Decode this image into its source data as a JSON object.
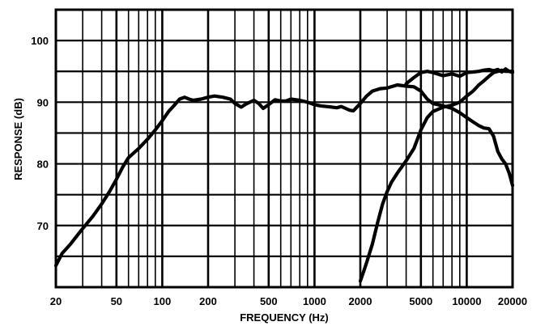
{
  "chart_data": {
    "type": "line",
    "xlabel": "FREQUENCY (Hz)",
    "ylabel": "RESPONSE (dB)",
    "x_scale": "log",
    "xlim": [
      20,
      20000
    ],
    "ylim": [
      60,
      105
    ],
    "x_ticks": [
      {
        "value": 20,
        "label": "20"
      },
      {
        "value": 50,
        "label": "50"
      },
      {
        "value": 100,
        "label": "100"
      },
      {
        "value": 200,
        "label": "200"
      },
      {
        "value": 500,
        "label": "500"
      },
      {
        "value": 1000,
        "label": "1000"
      },
      {
        "value": 2000,
        "label": "2000"
      },
      {
        "value": 5000,
        "label": "5000"
      },
      {
        "value": 10000,
        "label": "10000"
      },
      {
        "value": 20000,
        "label": "20000"
      }
    ],
    "y_ticks": [
      {
        "value": 70,
        "label": "70"
      },
      {
        "value": 80,
        "label": "80"
      },
      {
        "value": 90,
        "label": "90"
      },
      {
        "value": 100,
        "label": "100"
      }
    ],
    "grid": true,
    "legend": "none",
    "series": [
      {
        "color": "#000000",
        "x": [
          20,
          22,
          25,
          30,
          35,
          40,
          45,
          50,
          55,
          60,
          70,
          80,
          90,
          100,
          110,
          120,
          130,
          140,
          150,
          160,
          180,
          200,
          220,
          250,
          280,
          300,
          330,
          360,
          400,
          430,
          460,
          500,
          550,
          600,
          650,
          700,
          800,
          900,
          1000,
          1100,
          1200,
          1300,
          1400,
          1500,
          1600,
          1700,
          1800,
          2000,
          2200,
          2400,
          2700,
          3000,
          3500,
          4000,
          4500,
          5000,
          5500,
          6000,
          7000,
          8000,
          9000,
          10000,
          11000,
          12000,
          13000,
          14000,
          15000,
          16000,
          17000,
          18000,
          19000,
          20000
        ],
        "y": [
          63.5,
          65.5,
          67,
          69.5,
          71.5,
          73.5,
          75.5,
          77.5,
          79.5,
          81,
          82.5,
          84,
          85.5,
          87,
          88.5,
          89.5,
          90.5,
          90.8,
          90.5,
          90.3,
          90.5,
          90.8,
          91.0,
          90.8,
          90.5,
          89.8,
          89.2,
          89.8,
          90.3,
          89.8,
          89.0,
          89.6,
          90.4,
          90.2,
          90.2,
          90.5,
          90.3,
          90.0,
          89.6,
          89.4,
          89.3,
          89.2,
          89.1,
          89.3,
          89.0,
          88.7,
          88.6,
          89.8,
          91.0,
          91.8,
          92.2,
          92.3,
          92.8,
          92.6,
          92.5,
          91.8,
          90.5,
          89.8,
          89.4,
          89.0,
          88.3,
          87.5,
          86.8,
          86.2,
          85.8,
          85.7,
          84.5,
          82.0,
          80.8,
          80.0,
          78.5,
          76.5
        ]
      },
      {
        "color": "#000000",
        "x": [
          2000,
          2100,
          2200,
          2400,
          2600,
          2800,
          3000,
          3200,
          3500,
          4000,
          4500,
          5000,
          5500,
          6000,
          7000,
          8000,
          9000,
          10000,
          11000,
          12000,
          13000,
          14000,
          15000,
          16000,
          17000,
          18000,
          19000,
          20000
        ],
        "y": [
          61.0,
          62.5,
          64.0,
          67.0,
          70.5,
          73.5,
          75.5,
          77.0,
          78.5,
          80.5,
          82.5,
          85.5,
          87.5,
          88.5,
          89.2,
          89.5,
          90.0,
          91.0,
          91.8,
          92.8,
          93.5,
          94.2,
          94.8,
          95.0,
          95.2,
          95.0,
          95.0,
          95.0
        ]
      },
      {
        "color": "#000000",
        "x": [
          4000,
          4500,
          5000,
          5500,
          6000,
          7000,
          8000,
          9000,
          10000,
          11000,
          12000,
          13000,
          14000,
          15000,
          16000,
          17000,
          18000,
          19000,
          20000
        ],
        "y": [
          93.0,
          94.0,
          94.8,
          95.0,
          94.8,
          94.3,
          94.6,
          94.2,
          94.8,
          94.9,
          95.0,
          95.2,
          95.3,
          95.1,
          95.3,
          94.9,
          95.4,
          95.0,
          94.8
        ]
      }
    ]
  }
}
